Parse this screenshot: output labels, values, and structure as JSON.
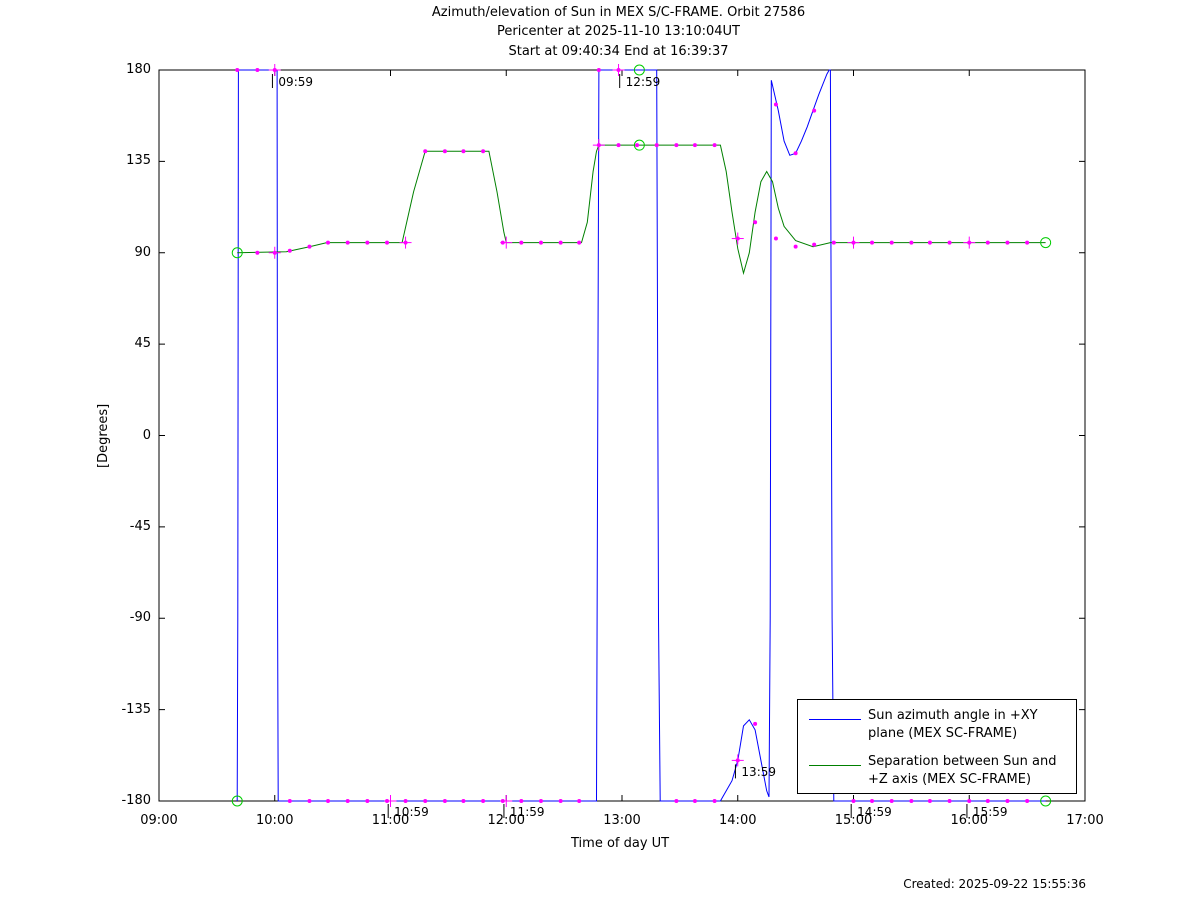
{
  "chart_data": {
    "type": "line",
    "title_lines": [
      "Azimuth/elevation of Sun in MEX S/C-FRAME.  Orbit 27586",
      "Pericenter at 2025-11-10 13:10:04UT",
      "Start at 09:40:34 End at 16:39:37"
    ],
    "xlabel": "Time of day UT",
    "ylabel": "[Degrees]",
    "xlim": [
      9.0,
      17.0
    ],
    "ylim": [
      -180,
      180
    ],
    "xticks": [
      {
        "v": 9,
        "label": "09:00"
      },
      {
        "v": 10,
        "label": "10:00"
      },
      {
        "v": 11,
        "label": "11:00"
      },
      {
        "v": 12,
        "label": "12:00"
      },
      {
        "v": 13,
        "label": "13:00"
      },
      {
        "v": 14,
        "label": "14:00"
      },
      {
        "v": 15,
        "label": "15:00"
      },
      {
        "v": 16,
        "label": "16:00"
      },
      {
        "v": 17,
        "label": "17:00"
      }
    ],
    "yticks": [
      180,
      135,
      90,
      45,
      0,
      -45,
      -90,
      -135,
      -180
    ],
    "series": [
      {
        "name": "Sun azimuth angle in +XY plane (MEX SC-FRAME)",
        "color": "#0000ff",
        "points": [
          [
            9.676,
            -180
          ],
          [
            9.681,
            -90
          ],
          [
            9.686,
            180
          ],
          [
            10.02,
            180
          ],
          [
            10.025,
            -90
          ],
          [
            10.03,
            -180
          ],
          [
            11.0,
            -180
          ],
          [
            12.0,
            -180
          ],
          [
            12.78,
            -180
          ],
          [
            12.79,
            0
          ],
          [
            12.8,
            180
          ],
          [
            13.3,
            180
          ],
          [
            13.315,
            -90
          ],
          [
            13.33,
            -180
          ],
          [
            13.85,
            -180
          ],
          [
            13.95,
            -170
          ],
          [
            14.0,
            -160
          ],
          [
            14.05,
            -143
          ],
          [
            14.1,
            -140
          ],
          [
            14.15,
            -145
          ],
          [
            14.2,
            -160
          ],
          [
            14.25,
            -175
          ],
          [
            14.27,
            -178
          ],
          [
            14.28,
            -90
          ],
          [
            14.29,
            175
          ],
          [
            14.35,
            160
          ],
          [
            14.4,
            145
          ],
          [
            14.45,
            138
          ],
          [
            14.5,
            139
          ],
          [
            14.55,
            145
          ],
          [
            14.6,
            152
          ],
          [
            14.65,
            160
          ],
          [
            14.7,
            168
          ],
          [
            14.77,
            178
          ],
          [
            14.79,
            180
          ],
          [
            14.8,
            180
          ],
          [
            14.815,
            -90
          ],
          [
            14.83,
            -180
          ],
          [
            16.66,
            -180
          ]
        ]
      },
      {
        "name": "Separation between Sun and +Z axis (MEX SC-FRAME)",
        "color": "#008000",
        "points": [
          [
            9.676,
            90
          ],
          [
            10.1,
            90.5
          ],
          [
            10.3,
            93
          ],
          [
            10.45,
            95
          ],
          [
            11.1,
            95
          ],
          [
            11.2,
            120
          ],
          [
            11.25,
            130
          ],
          [
            11.3,
            140
          ],
          [
            11.85,
            140
          ],
          [
            11.92,
            120
          ],
          [
            11.98,
            100
          ],
          [
            12.0,
            95
          ],
          [
            12.65,
            95
          ],
          [
            12.7,
            105
          ],
          [
            12.75,
            130
          ],
          [
            12.78,
            140
          ],
          [
            12.8,
            143
          ],
          [
            13.85,
            143
          ],
          [
            13.9,
            130
          ],
          [
            13.95,
            110
          ],
          [
            14.0,
            92
          ],
          [
            14.05,
            80
          ],
          [
            14.1,
            90
          ],
          [
            14.15,
            110
          ],
          [
            14.2,
            125
          ],
          [
            14.25,
            130
          ],
          [
            14.3,
            125
          ],
          [
            14.35,
            112
          ],
          [
            14.4,
            103
          ],
          [
            14.5,
            96
          ],
          [
            14.65,
            93
          ],
          [
            14.8,
            95
          ],
          [
            16.66,
            95
          ]
        ]
      }
    ],
    "markers": [
      [
        9.676,
        180
      ],
      [
        9.85,
        180
      ],
      [
        10.0,
        180
      ],
      [
        9.85,
        90
      ],
      [
        10.0,
        90
      ],
      [
        10.13,
        91
      ],
      [
        10.3,
        93
      ],
      [
        10.46,
        95
      ],
      [
        10.63,
        95
      ],
      [
        10.8,
        95
      ],
      [
        10.97,
        95
      ],
      [
        11.13,
        95
      ],
      [
        11.3,
        140
      ],
      [
        11.47,
        140
      ],
      [
        11.63,
        140
      ],
      [
        11.8,
        140
      ],
      [
        11.97,
        95
      ],
      [
        12.13,
        95
      ],
      [
        12.3,
        95
      ],
      [
        12.47,
        95
      ],
      [
        12.63,
        95
      ],
      [
        12.8,
        143
      ],
      [
        12.97,
        143
      ],
      [
        13.13,
        143
      ],
      [
        13.3,
        143
      ],
      [
        13.47,
        143
      ],
      [
        13.63,
        143
      ],
      [
        13.8,
        143
      ],
      [
        12.8,
        180
      ],
      [
        12.97,
        180
      ],
      [
        14.0,
        97
      ],
      [
        14.15,
        105
      ],
      [
        14.33,
        97
      ],
      [
        14.5,
        93
      ],
      [
        14.66,
        94
      ],
      [
        14.83,
        95
      ],
      [
        15.0,
        95
      ],
      [
        15.16,
        95
      ],
      [
        15.33,
        95
      ],
      [
        15.5,
        95
      ],
      [
        15.66,
        95
      ],
      [
        15.83,
        95
      ],
      [
        16.0,
        95
      ],
      [
        16.16,
        95
      ],
      [
        16.33,
        95
      ],
      [
        16.5,
        95
      ],
      [
        10.13,
        -180
      ],
      [
        10.3,
        -180
      ],
      [
        10.46,
        -180
      ],
      [
        10.63,
        -180
      ],
      [
        10.8,
        -180
      ],
      [
        10.97,
        -180
      ],
      [
        11.13,
        -180
      ],
      [
        11.3,
        -180
      ],
      [
        11.47,
        -180
      ],
      [
        11.63,
        -180
      ],
      [
        11.8,
        -180
      ],
      [
        11.97,
        -180
      ],
      [
        12.13,
        -180
      ],
      [
        12.3,
        -180
      ],
      [
        12.47,
        -180
      ],
      [
        12.63,
        -180
      ],
      [
        13.47,
        -180
      ],
      [
        13.63,
        -180
      ],
      [
        13.8,
        -180
      ],
      [
        14.0,
        -160
      ],
      [
        14.15,
        -142
      ],
      [
        14.33,
        163
      ],
      [
        14.5,
        139
      ],
      [
        14.66,
        160
      ],
      [
        15.0,
        -180
      ],
      [
        15.16,
        -180
      ],
      [
        15.33,
        -180
      ],
      [
        15.5,
        -180
      ],
      [
        15.66,
        -180
      ],
      [
        15.83,
        -180
      ],
      [
        16.0,
        -180
      ],
      [
        16.16,
        -180
      ],
      [
        16.33,
        -180
      ],
      [
        16.5,
        -180
      ]
    ],
    "circles": [
      [
        9.676,
        90
      ],
      [
        9.676,
        -180
      ],
      [
        13.15,
        180
      ],
      [
        13.15,
        143
      ],
      [
        16.66,
        95
      ],
      [
        16.66,
        -180
      ]
    ],
    "annotations": [
      {
        "x": 9.98,
        "y": 180,
        "label": "09:59"
      },
      {
        "x": 12.98,
        "y": 180,
        "label": "12:59"
      },
      {
        "x": 10.98,
        "y": -180,
        "label": "10:59"
      },
      {
        "x": 11.98,
        "y": -180,
        "label": "11:59"
      },
      {
        "x": 13.98,
        "y": -160,
        "label": "13:59"
      },
      {
        "x": 14.98,
        "y": -180,
        "label": "14:59"
      },
      {
        "x": 15.98,
        "y": -180,
        "label": "15:59"
      }
    ],
    "legend": "bottom-right",
    "grid": false
  },
  "legend_items": [
    {
      "text": "Sun azimuth angle in +XY plane (MEX SC-FRAME)",
      "color": "#0000ff"
    },
    {
      "text": "Separation between Sun and +Z axis (MEX SC-FRAME)",
      "color": "#008000"
    }
  ],
  "created": "Created: 2025-09-22 15:55:36"
}
